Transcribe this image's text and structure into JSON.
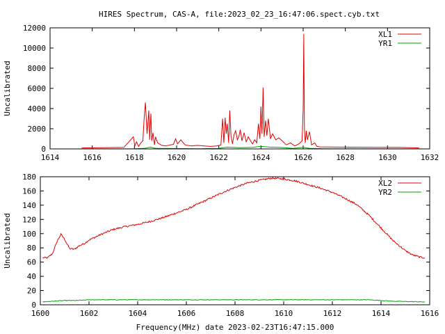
{
  "title": "HIRES Spectrum, CAS-A, file:2023_02_23_16:47:06.spect.cyb.txt",
  "colors": {
    "series1": "#e00000",
    "series2": "#00a000",
    "axis": "#000000"
  },
  "chart_data": [
    {
      "type": "line",
      "ylabel": "Uncalibrated",
      "xlabel": "",
      "xlim": [
        1614,
        1632
      ],
      "ylim": [
        0,
        12000
      ],
      "xticks": [
        1614,
        1616,
        1618,
        1620,
        1622,
        1624,
        1626,
        1628,
        1630,
        1632
      ],
      "yticks": [
        0,
        2000,
        4000,
        6000,
        8000,
        10000,
        12000
      ],
      "legend_position": "top-right",
      "grid": false,
      "series": [
        {
          "name": "XL1",
          "color": "#e00000",
          "x": [
            1615.5,
            1617.5,
            1617.95,
            1618.02,
            1618.1,
            1618.2,
            1618.3,
            1618.4,
            1618.45,
            1618.52,
            1618.6,
            1618.68,
            1618.72,
            1618.78,
            1618.82,
            1618.88,
            1618.95,
            1619.0,
            1619.1,
            1619.3,
            1619.5,
            1619.7,
            1619.85,
            1619.95,
            1620.05,
            1620.2,
            1620.4,
            1620.7,
            1621.0,
            1621.3,
            1621.6,
            1621.9,
            1622.1,
            1622.18,
            1622.24,
            1622.3,
            1622.35,
            1622.4,
            1622.47,
            1622.52,
            1622.58,
            1622.65,
            1622.72,
            1622.8,
            1622.88,
            1622.95,
            1623.02,
            1623.1,
            1623.2,
            1623.3,
            1623.4,
            1623.5,
            1623.6,
            1623.7,
            1623.8,
            1623.88,
            1623.95,
            1624.0,
            1624.05,
            1624.1,
            1624.15,
            1624.22,
            1624.28,
            1624.35,
            1624.45,
            1624.55,
            1624.7,
            1624.85,
            1625.0,
            1625.2,
            1625.4,
            1625.6,
            1625.8,
            1625.95,
            1626.0,
            1626.03,
            1626.06,
            1626.1,
            1626.15,
            1626.2,
            1626.3,
            1626.4,
            1626.55,
            1626.65,
            1626.8,
            1627.5,
            1628.5,
            1629.5,
            1630.5,
            1631.5
          ],
          "y": [
            100,
            150,
            1200,
            300,
            700,
            250,
            600,
            800,
            2700,
            4600,
            1500,
            3800,
            900,
            3500,
            800,
            1600,
            400,
            1200,
            600,
            350,
            300,
            400,
            450,
            1000,
            500,
            900,
            400,
            300,
            350,
            300,
            250,
            300,
            400,
            3000,
            600,
            3100,
            1500,
            2500,
            600,
            3800,
            1200,
            500,
            1400,
            1800,
            900,
            1200,
            1900,
            800,
            1600,
            700,
            1200,
            800,
            500,
            900,
            600,
            2500,
            1000,
            4200,
            1500,
            6100,
            1200,
            2800,
            1300,
            3000,
            1000,
            1500,
            900,
            1100,
            800,
            400,
            600,
            300,
            500,
            800,
            4000,
            11400,
            2000,
            600,
            1800,
            900,
            1700,
            400,
            600,
            250,
            200,
            180,
            170,
            160,
            150,
            100
          ]
        },
        {
          "name": "YR1",
          "color": "#00a000",
          "x": [
            1615.5,
            1618,
            1618.5,
            1618.75,
            1619,
            1621,
            1622,
            1622.4,
            1623,
            1623.6,
            1624,
            1624.4,
            1624.9,
            1625.5,
            1626,
            1626.3,
            1627,
            1631.5
          ],
          "y": [
            10,
            20,
            60,
            180,
            60,
            20,
            50,
            180,
            120,
            160,
            260,
            180,
            150,
            50,
            160,
            60,
            20,
            10
          ]
        }
      ]
    },
    {
      "type": "line",
      "ylabel": "Uncalibrated",
      "xlabel": "Frequency(MHz) date 2023-02-23T16:47:15.000",
      "xlim": [
        1600,
        1616
      ],
      "ylim": [
        0,
        180
      ],
      "xticks": [
        1600,
        1602,
        1604,
        1606,
        1608,
        1610,
        1612,
        1614,
        1616
      ],
      "yticks": [
        0,
        20,
        40,
        60,
        80,
        100,
        120,
        140,
        160,
        180
      ],
      "legend_position": "top-right",
      "grid": false,
      "series": [
        {
          "name": "XL2",
          "color": "#e00000",
          "x": [
            1600.1,
            1600.3,
            1600.5,
            1600.7,
            1600.85,
            1601.0,
            1601.2,
            1601.4,
            1601.6,
            1601.8,
            1602.0,
            1602.5,
            1603.0,
            1603.5,
            1604.0,
            1604.5,
            1605.0,
            1605.5,
            1606.0,
            1606.5,
            1607.0,
            1607.5,
            1608.0,
            1608.5,
            1609.0,
            1609.5,
            1610.0,
            1610.5,
            1611.0,
            1611.5,
            1612.0,
            1612.5,
            1613.0,
            1613.5,
            1614.0,
            1614.5,
            1615.0,
            1615.3,
            1615.6,
            1615.8
          ],
          "y": [
            66,
            66,
            72,
            90,
            99,
            92,
            79,
            78,
            83,
            86,
            91,
            99,
            106,
            110,
            113,
            117,
            122,
            128,
            134,
            142,
            150,
            158,
            165,
            171,
            175,
            178,
            177,
            174,
            169,
            164,
            158,
            150,
            141,
            126,
            108,
            90,
            76,
            70,
            67,
            66
          ],
          "noise": 1.2
        },
        {
          "name": "YR2",
          "color": "#00a000",
          "x": [
            1600.1,
            1600.5,
            1601,
            1601.5,
            1602,
            1604,
            1606,
            1608,
            1610,
            1612,
            1613.5,
            1614.5,
            1615.8
          ],
          "y": [
            4,
            5,
            6,
            6,
            7,
            7,
            7,
            7,
            7,
            7,
            7,
            5,
            4
          ],
          "noise": 0.4
        }
      ]
    }
  ]
}
